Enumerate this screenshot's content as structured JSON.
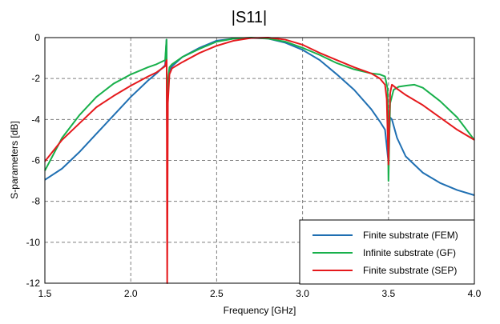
{
  "chart_data": {
    "type": "line",
    "title": "|S11|",
    "xlabel": "Frequency [GHz]",
    "ylabel": "S-parameters [dB]",
    "xlim": [
      1.5,
      4.0
    ],
    "ylim": [
      -12,
      0
    ],
    "xticks": [
      1.5,
      2.0,
      2.5,
      3.0,
      3.5,
      4.0
    ],
    "xtick_labels": [
      "1.5",
      "2.0",
      "2.5",
      "3.0",
      "3.5",
      "4.0"
    ],
    "yticks": [
      0,
      -2,
      -4,
      -6,
      -8,
      -10,
      -12
    ],
    "ytick_labels": [
      "0",
      "-2",
      "-4",
      "-6",
      "-8",
      "-10",
      "-12"
    ],
    "grid": true,
    "legend_position": "bottom-right",
    "series": [
      {
        "name": "Finite substrate (FEM)",
        "color": "#1f6fb2",
        "x": [
          1.5,
          1.6,
          1.7,
          1.8,
          1.9,
          2.0,
          2.1,
          2.15,
          2.2,
          2.208,
          2.212,
          2.216,
          2.225,
          2.24,
          2.3,
          2.4,
          2.5,
          2.6,
          2.7,
          2.8,
          2.9,
          3.0,
          3.1,
          3.2,
          3.3,
          3.4,
          3.45,
          3.48,
          3.5,
          3.505,
          3.51,
          3.52,
          3.55,
          3.6,
          3.7,
          3.8,
          3.9,
          4.0
        ],
        "y": [
          -6.95,
          -6.4,
          -5.6,
          -4.7,
          -3.8,
          -2.9,
          -2.1,
          -1.75,
          -1.35,
          -0.1,
          -5.5,
          -2.5,
          -1.6,
          -1.4,
          -0.95,
          -0.5,
          -0.15,
          -0.05,
          -0.02,
          -0.05,
          -0.25,
          -0.6,
          -1.1,
          -1.8,
          -2.55,
          -3.5,
          -4.1,
          -4.5,
          -6.1,
          -4.5,
          -3.9,
          -4.0,
          -4.9,
          -5.8,
          -6.6,
          -7.1,
          -7.45,
          -7.7
        ]
      },
      {
        "name": "Infinite substrate (GF)",
        "color": "#18b04b",
        "x": [
          1.5,
          1.6,
          1.7,
          1.8,
          1.9,
          2.0,
          2.1,
          2.15,
          2.2,
          2.208,
          2.212,
          2.216,
          2.225,
          2.24,
          2.3,
          2.4,
          2.5,
          2.6,
          2.7,
          2.8,
          2.9,
          3.0,
          3.1,
          3.2,
          3.3,
          3.4,
          3.45,
          3.48,
          3.495,
          3.5,
          3.505,
          3.51,
          3.53,
          3.56,
          3.6,
          3.65,
          3.7,
          3.8,
          3.9,
          4.0
        ],
        "y": [
          -6.5,
          -4.9,
          -3.8,
          -2.9,
          -2.25,
          -1.8,
          -1.45,
          -1.3,
          -1.1,
          -0.1,
          -5.5,
          -2.2,
          -1.45,
          -1.3,
          -0.95,
          -0.55,
          -0.2,
          -0.05,
          0.0,
          -0.05,
          -0.2,
          -0.5,
          -0.85,
          -1.25,
          -1.55,
          -1.75,
          -1.8,
          -1.9,
          -2.5,
          -7.0,
          -5.0,
          -3.2,
          -2.55,
          -2.4,
          -2.35,
          -2.3,
          -2.45,
          -3.1,
          -3.9,
          -5.0
        ]
      },
      {
        "name": "Finite substrate (SEP)",
        "color": "#e5191c",
        "x": [
          1.5,
          1.6,
          1.7,
          1.8,
          1.9,
          2.0,
          2.1,
          2.15,
          2.2,
          2.205,
          2.209,
          2.212,
          2.216,
          2.225,
          2.24,
          2.3,
          2.4,
          2.5,
          2.6,
          2.7,
          2.8,
          2.9,
          3.0,
          3.1,
          3.2,
          3.3,
          3.4,
          3.45,
          3.48,
          3.49,
          3.5,
          3.505,
          3.51,
          3.52,
          3.55,
          3.6,
          3.7,
          3.8,
          3.9,
          4.0
        ],
        "y": [
          -6.05,
          -5.0,
          -4.2,
          -3.4,
          -2.85,
          -2.35,
          -1.9,
          -1.7,
          -1.4,
          -1.2,
          -1.1,
          -12.0,
          -3.2,
          -1.8,
          -1.5,
          -1.2,
          -0.75,
          -0.4,
          -0.15,
          -0.02,
          0.0,
          -0.1,
          -0.35,
          -0.75,
          -1.1,
          -1.45,
          -1.75,
          -2.0,
          -2.3,
          -3.0,
          -6.2,
          -4.0,
          -2.7,
          -2.3,
          -2.5,
          -2.8,
          -3.3,
          -3.9,
          -4.5,
          -5.0
        ]
      }
    ]
  }
}
